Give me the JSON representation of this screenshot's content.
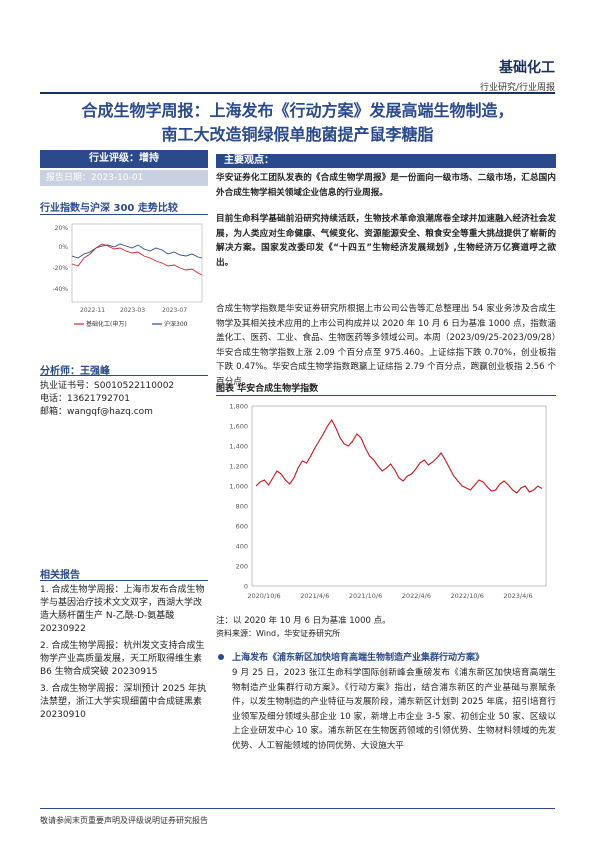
{
  "header": {
    "sector": "基础化工",
    "category": "行业研究/行业周报"
  },
  "title": {
    "line1": "合成生物学周报：上海发布《行动方案》发展高端生物制造，",
    "line2": "南工大改造铜绿假单胞菌提产鼠李糖脂"
  },
  "rating": {
    "label": "行业评级：增持",
    "date": "报告日期：2023-10-01"
  },
  "index_chart": {
    "title": "行业指数与沪深 300 走势比较",
    "y_ticks": [
      "20%",
      "0%",
      "-20%",
      "-40%"
    ],
    "x_ticks": [
      "2022-11",
      "2023-03",
      "2023-07"
    ],
    "legend": [
      "基础化工(申万)",
      "沪深300"
    ],
    "colors": {
      "sector": "#d9232a",
      "hs300": "#2a4a8c"
    }
  },
  "analyst": {
    "label": "分析师：王强峰",
    "license": "执业证书号：S0010522110002",
    "phone": "电话：13621792701",
    "email": "邮箱：wangqf@hazq.com"
  },
  "related": {
    "title": "相关报告",
    "items": [
      "1.  合成生物学周报：上海市发布合成生物学与基因治疗技术文文双字，西湖大学改造大肠杆菌生产 N-乙酰-D-氨基酸 20230922",
      "2.  合成生物学周报：杭州发文支持合成生物学产业高质量发展，天工所取得维生素 B6 生物合成突破 20230915",
      "3.  合成生物学周报：深圳预计 2025 年执法禁塑，浙江大学实现细菌中合成链黑素 20230910"
    ]
  },
  "key_points": {
    "title": "主要观点：",
    "p1": "华安证券化工团队发表的《合成生物学周报》是一份面向一级市场、二级市场，汇总国内外合成生物学相关领域企业信息的行业周报。",
    "p2": "目前生命科学基础前沿研究持续活跃，生物技术革命浪潮席卷全球并加速融入经济社会发展，为人类应对生命健康、气候变化、资源能源安全、粮食安全等重大挑战提供了崭新的解决方案。国家发改委印发《“十四五”生物经济发展规划》,生物经济万亿赛道呼之欲出。",
    "p3": "合成生物学指数是华安证券研究所根据上市公司公告等汇总整理出 54 家业务涉及合成生物学及其相关技术应用的上市公司构成并以 2020 年 10 月 6 日为基准 1000 点，指数涵盖化工、医药、工业、食品、生物医药等多领域公司。本周（2023/09/25-2023/09/28）华安合成生物学指数上涨 2.09 个百分点至 975.460。上证综指下跌 0.70%，创业板指下跌 0.47%。华安合成生物学指数跑赢上证综指 2.79 个百分点，跑赢创业板指 2.56 个百分点。"
  },
  "chart_data": {
    "type": "line",
    "title": "图表 华安合成生物学指数",
    "y_ticks": [
      "1,800",
      "1,600",
      "1,400",
      "1,200",
      "1,000",
      "800",
      "600",
      "400",
      "200",
      "0"
    ],
    "ylim": [
      0,
      1800
    ],
    "x_ticks": [
      "2020/10/6",
      "2021/4/6",
      "2021/10/6",
      "2022/4/6",
      "2022/10/6",
      "2023/4/6"
    ],
    "series": [
      {
        "values": [
          1000,
          1040,
          1060,
          1010,
          1080,
          1150,
          1120,
          1060,
          1020,
          1080,
          1180,
          1250,
          1230,
          1300,
          1380,
          1450,
          1520,
          1600,
          1660,
          1580,
          1480,
          1420,
          1400,
          1450,
          1520,
          1480,
          1380,
          1300,
          1260,
          1200,
          1150,
          1180,
          1220,
          1160,
          1080,
          1050,
          1100,
          1120,
          1170,
          1230,
          1260,
          1210,
          1240,
          1280,
          1330,
          1260,
          1180,
          1100,
          1050,
          1000,
          980,
          960,
          1010,
          1060,
          1040,
          990,
          950,
          960,
          1020,
          1050,
          1010,
          960,
          930,
          980,
          1000,
          940,
          960,
          1000,
          975
        ]
      }
    ],
    "note": "注：以 2020 年 10 月 6 日为基准 1000 点。",
    "source": "资料来源：Wind，华安证券研究所"
  },
  "news": {
    "headline": "上海发布《浦东新区加快培育高端生物制造产业集群行动方案》",
    "body": "9 月 25 日，2023 张江生命科学国际创新峰会重磅发布《浦东新区加快培育高端生物制造产业集群行动方案》。《行动方案》指出，结合浦东新区的产业基础与禀赋条件，以发生物制造的产业特征与发展阶段，浦东新区计划到 2025 年底，招引培育行业领军及细分领域头部企业 10 家，新增上市企业 3-5 家、初创企业 50 家、区级以上企业研发中心 10 家。浦东新区在生物医药领域的引领优势、生物材料领域的先发优势、人工智能领域的协同优势、大设施大平"
  },
  "footer": "敬请参阅末页重要声明及评级说明证券研究报告"
}
